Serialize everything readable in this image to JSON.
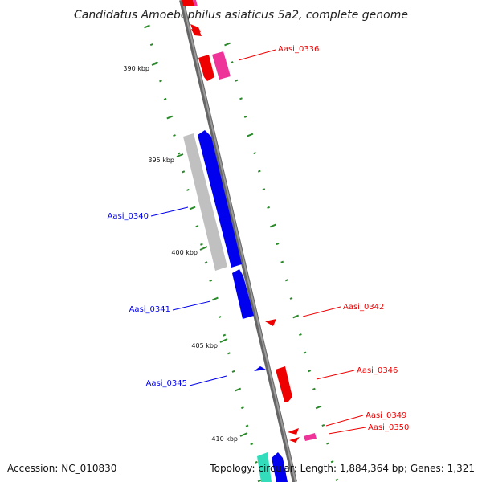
{
  "title": "Candidatus Amoebophilus asiaticus 5a2, complete genome",
  "footer": {
    "accession": "Accession: NC_010830",
    "topology": "Topology: circular; Length: 1,884,364 bp; Genes: 1,321"
  },
  "scale_labels": [
    "390 kbp",
    "395 kbp",
    "400 kbp",
    "405 kbp",
    "410 kbp"
  ],
  "gene_labels": [
    {
      "text": "Aasi_0336",
      "strand": "reverse"
    },
    {
      "text": "Aasi_0340",
      "strand": "forward"
    },
    {
      "text": "Aasi_0341",
      "strand": "forward"
    },
    {
      "text": "Aasi_0342",
      "strand": "reverse"
    },
    {
      "text": "Aasi_0345",
      "strand": "forward"
    },
    {
      "text": "Aasi_0346",
      "strand": "reverse"
    },
    {
      "text": "Aasi_0349",
      "strand": "reverse"
    },
    {
      "text": "Aasi_0350",
      "strand": "reverse"
    }
  ],
  "colors": {
    "forward": "#0000ee",
    "reverse": "#ee0000",
    "backbone": "#888888",
    "ticks": "#2a8a2a",
    "pseudo": "#c0c0c0",
    "rna": "#ee3399",
    "trna": "#33ddbb"
  }
}
